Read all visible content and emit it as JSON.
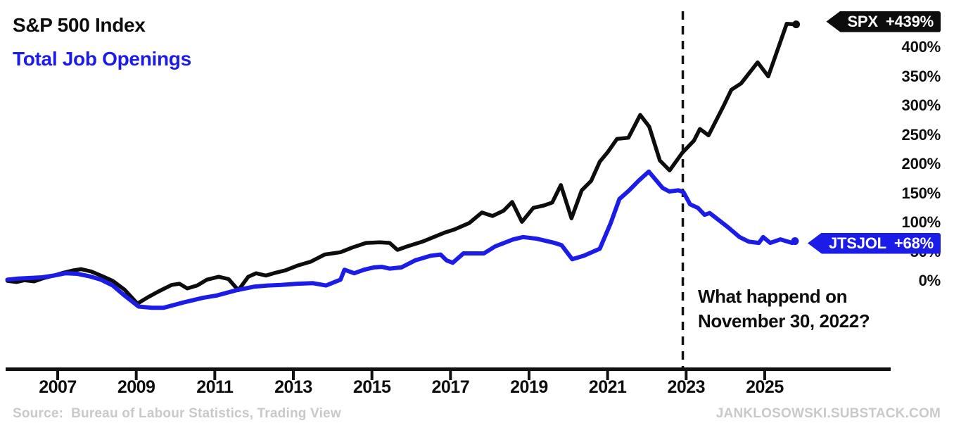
{
  "header": {
    "title_spx": "S&P 500 Index",
    "title_jobs": "Total Job Openings"
  },
  "colors": {
    "spx": "#0d0d0d",
    "jobs": "#1c1ce8",
    "axis": "#111111",
    "muted_text": "#c9c9c9"
  },
  "tags": {
    "spx": {
      "symbol": "SPX",
      "change": "+439%"
    },
    "jtsjol": {
      "symbol": "JTSJOL",
      "change": "+68%"
    }
  },
  "annotation": {
    "line1": "What happend on",
    "line2": "November 30, 2022?"
  },
  "footer": {
    "source": "Source:  Bureau of Labour Statistics, Trading View",
    "website": "JANKLOSOWSKI.SUBSTACK.COM"
  },
  "chart_data": {
    "type": "line",
    "title": "S&P 500 Index vs Total Job Openings (% change)",
    "x_unit": "year",
    "xlim": [
      2005.7,
      2026.3
    ],
    "ylim": [
      -60,
      460
    ],
    "grid": false,
    "legend_position": "top-left-titles-and-right-end-tags",
    "y_ticks": [
      {
        "label": "400%",
        "value": 400
      },
      {
        "label": "350%",
        "value": 350
      },
      {
        "label": "300%",
        "value": 300
      },
      {
        "label": "250%",
        "value": 250
      },
      {
        "label": "200%",
        "value": 200
      },
      {
        "label": "150%",
        "value": 150
      },
      {
        "label": "100%",
        "value": 100
      },
      {
        "label": "50%",
        "value": 50
      },
      {
        "label": "0%",
        "value": 0
      }
    ],
    "x_ticks": [
      {
        "label": "2007",
        "value": 2007
      },
      {
        "label": "2009",
        "value": 2009
      },
      {
        "label": "2011",
        "value": 2011
      },
      {
        "label": "2013",
        "value": 2013
      },
      {
        "label": "2015",
        "value": 2015
      },
      {
        "label": "2017",
        "value": 2017
      },
      {
        "label": "2019",
        "value": 2019
      },
      {
        "label": "2021",
        "value": 2021
      },
      {
        "label": "2023",
        "value": 2023
      },
      {
        "label": "2025",
        "value": 2025
      }
    ],
    "vline": {
      "x": 2022.915,
      "style": "dashed",
      "label": "November 30, 2022"
    },
    "series": [
      {
        "name": "SPX",
        "description": "S&P 500 Index",
        "color": "#0d0d0d",
        "final_change": "+439%",
        "points": [
          [
            2005.72,
            0
          ],
          [
            2005.95,
            -2
          ],
          [
            2006.15,
            1
          ],
          [
            2006.4,
            -1
          ],
          [
            2006.65,
            5
          ],
          [
            2006.9,
            9
          ],
          [
            2007.15,
            14
          ],
          [
            2007.4,
            18
          ],
          [
            2007.6,
            20
          ],
          [
            2007.85,
            16
          ],
          [
            2008.1,
            9
          ],
          [
            2008.4,
            0
          ],
          [
            2008.7,
            -15
          ],
          [
            2009.03,
            -39
          ],
          [
            2009.3,
            -28
          ],
          [
            2009.6,
            -17
          ],
          [
            2009.9,
            -7
          ],
          [
            2010.1,
            -5
          ],
          [
            2010.3,
            -13
          ],
          [
            2010.55,
            -8
          ],
          [
            2010.8,
            2
          ],
          [
            2011.1,
            7
          ],
          [
            2011.35,
            3
          ],
          [
            2011.6,
            -16
          ],
          [
            2011.85,
            7
          ],
          [
            2012.05,
            13
          ],
          [
            2012.3,
            9
          ],
          [
            2012.55,
            14
          ],
          [
            2012.8,
            18
          ],
          [
            2013.1,
            26
          ],
          [
            2013.45,
            33
          ],
          [
            2013.8,
            45
          ],
          [
            2014.2,
            49
          ],
          [
            2014.5,
            57
          ],
          [
            2014.85,
            65
          ],
          [
            2015.2,
            66
          ],
          [
            2015.45,
            65
          ],
          [
            2015.65,
            53
          ],
          [
            2015.9,
            59
          ],
          [
            2016.28,
            67
          ],
          [
            2016.87,
            83
          ],
          [
            2017.1,
            88
          ],
          [
            2017.48,
            99
          ],
          [
            2017.8,
            117
          ],
          [
            2018.07,
            111
          ],
          [
            2018.35,
            120
          ],
          [
            2018.57,
            135
          ],
          [
            2018.82,
            101
          ],
          [
            2019.11,
            125
          ],
          [
            2019.38,
            129
          ],
          [
            2019.59,
            134
          ],
          [
            2019.81,
            164
          ],
          [
            2020.08,
            107
          ],
          [
            2020.34,
            155
          ],
          [
            2020.58,
            171
          ],
          [
            2020.8,
            204
          ],
          [
            2021.0,
            220
          ],
          [
            2021.24,
            243
          ],
          [
            2021.53,
            245
          ],
          [
            2021.83,
            284
          ],
          [
            2022.06,
            264
          ],
          [
            2022.33,
            206
          ],
          [
            2022.58,
            189
          ],
          [
            2022.9,
            219
          ],
          [
            2023.2,
            240
          ],
          [
            2023.35,
            260
          ],
          [
            2023.57,
            249
          ],
          [
            2023.95,
            299
          ],
          [
            2024.15,
            327
          ],
          [
            2024.4,
            338
          ],
          [
            2024.82,
            374
          ],
          [
            2025.09,
            350
          ],
          [
            2025.56,
            440
          ],
          [
            2025.8,
            439
          ]
        ]
      },
      {
        "name": "JTSJOL",
        "description": "Total Job Openings",
        "color": "#1c1ce8",
        "final_change": "+68%",
        "points": [
          [
            2005.72,
            2
          ],
          [
            2006.0,
            4
          ],
          [
            2006.3,
            5
          ],
          [
            2006.6,
            6
          ],
          [
            2006.9,
            9
          ],
          [
            2007.2,
            13
          ],
          [
            2007.5,
            12
          ],
          [
            2007.8,
            8
          ],
          [
            2008.1,
            2
          ],
          [
            2008.4,
            -8
          ],
          [
            2008.7,
            -25
          ],
          [
            2009.06,
            -44
          ],
          [
            2009.4,
            -46
          ],
          [
            2009.7,
            -46
          ],
          [
            2010.2,
            -37
          ],
          [
            2010.7,
            -29
          ],
          [
            2011.05,
            -25
          ],
          [
            2011.55,
            -16
          ],
          [
            2012.0,
            -10
          ],
          [
            2012.35,
            -8
          ],
          [
            2012.7,
            -7
          ],
          [
            2013.1,
            -5
          ],
          [
            2013.5,
            -4
          ],
          [
            2013.83,
            -8
          ],
          [
            2014.2,
            2
          ],
          [
            2014.3,
            19
          ],
          [
            2014.55,
            13
          ],
          [
            2014.8,
            19
          ],
          [
            2015.05,
            23
          ],
          [
            2015.25,
            24
          ],
          [
            2015.45,
            21
          ],
          [
            2015.75,
            23
          ],
          [
            2016.1,
            35
          ],
          [
            2016.5,
            43
          ],
          [
            2016.75,
            45
          ],
          [
            2016.9,
            35
          ],
          [
            2017.06,
            31
          ],
          [
            2017.33,
            47
          ],
          [
            2017.6,
            47
          ],
          [
            2017.85,
            47
          ],
          [
            2018.14,
            59
          ],
          [
            2018.6,
            71
          ],
          [
            2018.85,
            75
          ],
          [
            2019.2,
            72
          ],
          [
            2019.65,
            65
          ],
          [
            2019.83,
            61
          ],
          [
            2020.1,
            37
          ],
          [
            2020.4,
            43
          ],
          [
            2020.8,
            55
          ],
          [
            2021.08,
            99
          ],
          [
            2021.3,
            140
          ],
          [
            2021.55,
            155
          ],
          [
            2021.8,
            172
          ],
          [
            2022.05,
            187
          ],
          [
            2022.4,
            159
          ],
          [
            2022.57,
            153
          ],
          [
            2022.8,
            155
          ],
          [
            2022.93,
            152
          ],
          [
            2023.1,
            131
          ],
          [
            2023.3,
            125
          ],
          [
            2023.47,
            113
          ],
          [
            2023.6,
            116
          ],
          [
            2024.06,
            92
          ],
          [
            2024.36,
            75
          ],
          [
            2024.6,
            67
          ],
          [
            2024.85,
            65
          ],
          [
            2024.96,
            75
          ],
          [
            2025.14,
            65
          ],
          [
            2025.4,
            71
          ],
          [
            2025.7,
            65
          ],
          [
            2025.77,
            68
          ]
        ]
      }
    ]
  }
}
